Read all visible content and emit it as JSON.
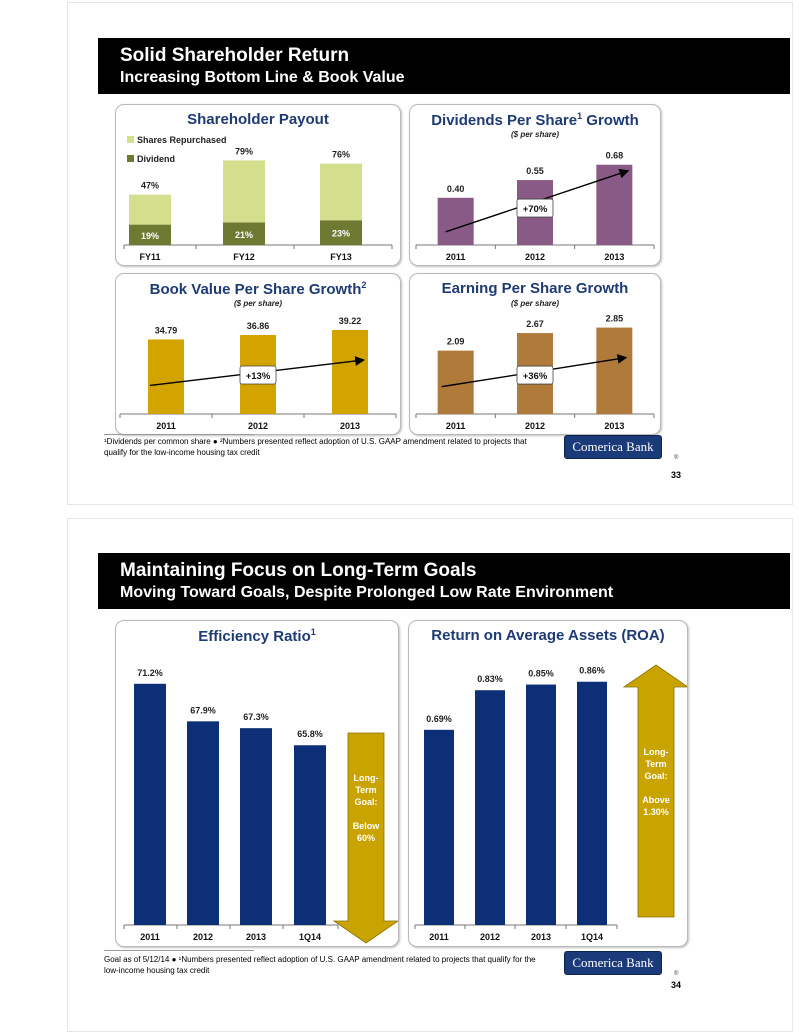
{
  "slides": [
    {
      "title": "Solid Shareholder Return",
      "subtitle": "Increasing Bottom Line & Book Value",
      "footnote_line1": "¹Dividends per common share ● ²Numbers presented reflect adoption of U.S. GAAP amendment related to projects that",
      "footnote_line2": "qualify for the low-income housing tax credit",
      "logo": "Comerica Bank",
      "logo_mark": "®",
      "page": "33"
    },
    {
      "title": "Maintaining Focus on Long-Term Goals",
      "subtitle": "Moving Toward Goals, Despite Prolonged Low Rate Environment",
      "footnote_line1": "Goal as of 5/12/14 ● ¹Numbers presented reflect adoption of U.S. GAAP amendment related to projects that qualify for the",
      "footnote_line2": "low-income housing tax credit",
      "logo": "Comerica Bank",
      "logo_mark": "®",
      "page": "34"
    }
  ],
  "panels": {
    "payout": {
      "title": "Shareholder Payout"
    },
    "dps": {
      "title": "Dividends Per Share",
      "title_sup": "1",
      "title_tail": " Growth",
      "subtitle": "($ per share)"
    },
    "bvps": {
      "title": "Book Value Per Share Growth",
      "title_sup": "2",
      "subtitle": "($ per share)"
    },
    "eps": {
      "title": "Earning Per Share Growth",
      "subtitle": "($ per share)"
    },
    "efficiency": {
      "title": "Efficiency Ratio",
      "title_sup": "1"
    },
    "roa": {
      "title": "Return on Average Assets (ROA)"
    }
  },
  "colors": {
    "shares_repurchased": "#d3df8c",
    "dividend": "#6e7a32",
    "dps_bar": "#8a5a86",
    "bvps_bar": "#d3a300",
    "eps_bar": "#b07a3a",
    "blue_bar": "#0d2f77",
    "goal_arrow": "#c9a300",
    "title_blue": "#1f3b73"
  },
  "chart_data": [
    {
      "id": "payout",
      "type": "bar",
      "stacked": true,
      "categories": [
        "FY11",
        "FY12",
        "FY13"
      ],
      "series": [
        {
          "name": "Dividend",
          "values": [
            19,
            21,
            23
          ],
          "labels": [
            "19%",
            "21%",
            "23%"
          ]
        },
        {
          "name": "Shares Repurchased",
          "values": [
            28,
            58,
            53
          ]
        }
      ],
      "totals": [
        47,
        79,
        76
      ],
      "total_labels": [
        "47%",
        "79%",
        "76%"
      ],
      "legend": [
        "Shares Repurchased",
        "Dividend"
      ],
      "legend_position": "top-left",
      "ylim": [
        0,
        85
      ]
    },
    {
      "id": "dps",
      "type": "bar",
      "categories": [
        "2011",
        "2012",
        "2013"
      ],
      "values": [
        0.4,
        0.55,
        0.68
      ],
      "labels": [
        "0.40",
        "0.55",
        "0.68"
      ],
      "ylim": [
        0,
        0.72
      ],
      "annotation": "+70%"
    },
    {
      "id": "bvps",
      "type": "bar",
      "categories": [
        "2011",
        "2012",
        "2013"
      ],
      "values": [
        34.79,
        36.86,
        39.22
      ],
      "labels": [
        "34.79",
        "36.86",
        "39.22"
      ],
      "ylim": [
        0,
        42
      ],
      "annotation": "+13%"
    },
    {
      "id": "eps",
      "type": "bar",
      "categories": [
        "2011",
        "2012",
        "2013"
      ],
      "values": [
        2.09,
        2.67,
        2.85
      ],
      "labels": [
        "2.09",
        "2.67",
        "2.85"
      ],
      "ylim": [
        0,
        3.1
      ],
      "annotation": "+36%"
    },
    {
      "id": "efficiency",
      "type": "bar",
      "categories": [
        "2011",
        "2012",
        "2013",
        "1Q14"
      ],
      "values": [
        71.2,
        67.9,
        67.3,
        65.8
      ],
      "labels": [
        "71.2%",
        "67.9%",
        "67.3%",
        "65.8%"
      ],
      "ylim": [
        50,
        72.5
      ],
      "goal": {
        "lines": [
          "Long-",
          "Term",
          "Goal:",
          "",
          "Below",
          "60%"
        ],
        "direction": "down"
      }
    },
    {
      "id": "roa",
      "type": "bar",
      "categories": [
        "2011",
        "2012",
        "2013",
        "1Q14"
      ],
      "values": [
        0.69,
        0.83,
        0.85,
        0.86
      ],
      "labels": [
        "0.69%",
        "0.83%",
        "0.85%",
        "0.86%"
      ],
      "ylim": [
        0,
        0.905
      ],
      "goal": {
        "lines": [
          "Long-",
          "Term",
          "Goal:",
          "",
          "Above",
          "1.30%"
        ],
        "direction": "up"
      }
    }
  ]
}
